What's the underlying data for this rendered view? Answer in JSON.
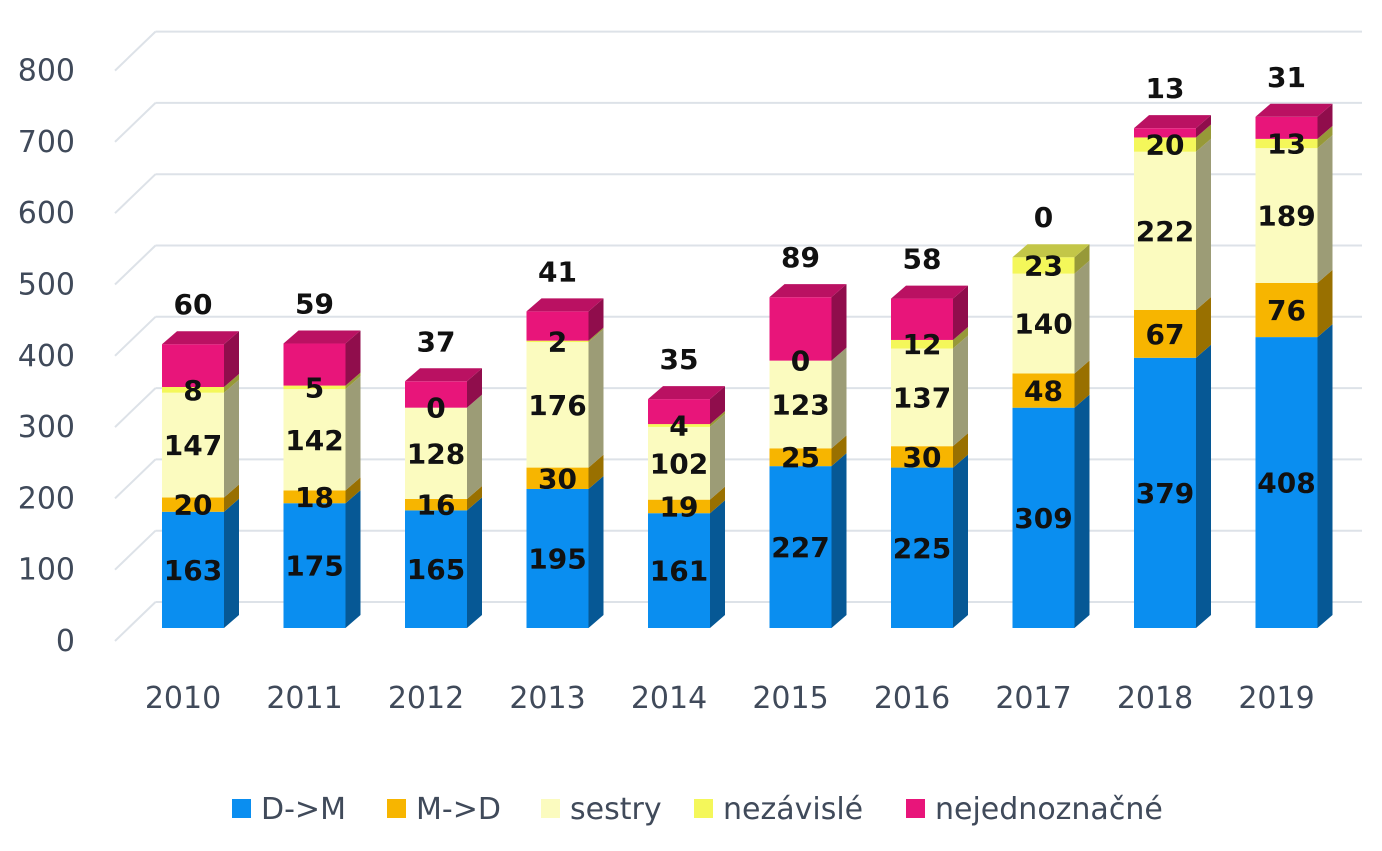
{
  "chart_data": {
    "type": "bar",
    "stacked": true,
    "three_d": true,
    "categories": [
      "2010",
      "2011",
      "2012",
      "2013",
      "2014",
      "2015",
      "2016",
      "2017",
      "2018",
      "2019"
    ],
    "series": [
      {
        "name": "D->M",
        "color": "#0a8ef0",
        "values": [
          163,
          175,
          165,
          195,
          161,
          227,
          225,
          309,
          379,
          408
        ]
      },
      {
        "name": "M->D",
        "color": "#f7b500",
        "values": [
          20,
          18,
          16,
          30,
          19,
          25,
          30,
          48,
          67,
          76
        ]
      },
      {
        "name": "sestry",
        "color": "#fbfbbf",
        "values": [
          147,
          142,
          128,
          176,
          102,
          123,
          137,
          140,
          222,
          189
        ]
      },
      {
        "name": "nezávislé",
        "color": "#f4f75a",
        "values": [
          8,
          5,
          0,
          2,
          4,
          0,
          12,
          23,
          20,
          13
        ]
      },
      {
        "name": "nejednoznačné",
        "color": "#e8157a",
        "values": [
          60,
          59,
          37,
          41,
          35,
          89,
          58,
          0,
          13,
          31
        ]
      }
    ],
    "yticks": [
      "0",
      "100",
      "200",
      "300",
      "400",
      "500",
      "600",
      "700",
      "800"
    ],
    "ylim": [
      0,
      800
    ],
    "grid": true,
    "legend": "bottom"
  }
}
